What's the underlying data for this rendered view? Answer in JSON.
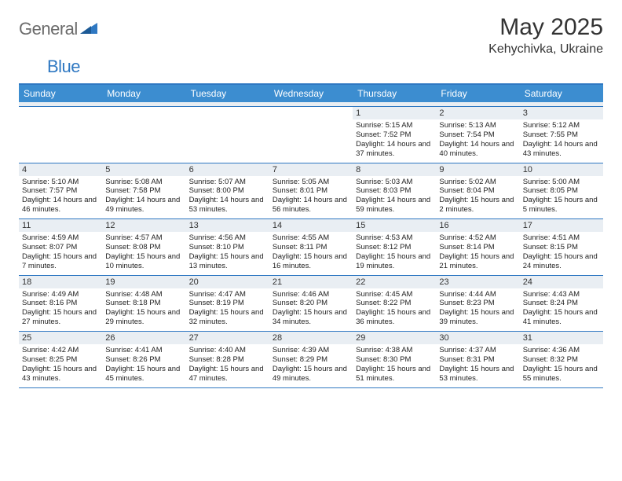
{
  "brand": {
    "part1": "General",
    "part2": "Blue"
  },
  "title": "May 2025",
  "location": "Kehychivka, Ukraine",
  "colors": {
    "header_bg": "#3c8dd0",
    "border": "#2f78c2",
    "daynum_bg": "#e9eef3",
    "text": "#333333",
    "brand_gray": "#6b6b6b",
    "brand_blue": "#2f78c2"
  },
  "dayNames": [
    "Sunday",
    "Monday",
    "Tuesday",
    "Wednesday",
    "Thursday",
    "Friday",
    "Saturday"
  ],
  "weeks": [
    [
      {
        "blank": true
      },
      {
        "blank": true
      },
      {
        "blank": true
      },
      {
        "blank": true
      },
      {
        "n": "1",
        "sunrise": "5:15 AM",
        "sunset": "7:52 PM",
        "daylight": "14 hours and 37 minutes."
      },
      {
        "n": "2",
        "sunrise": "5:13 AM",
        "sunset": "7:54 PM",
        "daylight": "14 hours and 40 minutes."
      },
      {
        "n": "3",
        "sunrise": "5:12 AM",
        "sunset": "7:55 PM",
        "daylight": "14 hours and 43 minutes."
      }
    ],
    [
      {
        "n": "4",
        "sunrise": "5:10 AM",
        "sunset": "7:57 PM",
        "daylight": "14 hours and 46 minutes."
      },
      {
        "n": "5",
        "sunrise": "5:08 AM",
        "sunset": "7:58 PM",
        "daylight": "14 hours and 49 minutes."
      },
      {
        "n": "6",
        "sunrise": "5:07 AM",
        "sunset": "8:00 PM",
        "daylight": "14 hours and 53 minutes."
      },
      {
        "n": "7",
        "sunrise": "5:05 AM",
        "sunset": "8:01 PM",
        "daylight": "14 hours and 56 minutes."
      },
      {
        "n": "8",
        "sunrise": "5:03 AM",
        "sunset": "8:03 PM",
        "daylight": "14 hours and 59 minutes."
      },
      {
        "n": "9",
        "sunrise": "5:02 AM",
        "sunset": "8:04 PM",
        "daylight": "15 hours and 2 minutes."
      },
      {
        "n": "10",
        "sunrise": "5:00 AM",
        "sunset": "8:05 PM",
        "daylight": "15 hours and 5 minutes."
      }
    ],
    [
      {
        "n": "11",
        "sunrise": "4:59 AM",
        "sunset": "8:07 PM",
        "daylight": "15 hours and 7 minutes."
      },
      {
        "n": "12",
        "sunrise": "4:57 AM",
        "sunset": "8:08 PM",
        "daylight": "15 hours and 10 minutes."
      },
      {
        "n": "13",
        "sunrise": "4:56 AM",
        "sunset": "8:10 PM",
        "daylight": "15 hours and 13 minutes."
      },
      {
        "n": "14",
        "sunrise": "4:55 AM",
        "sunset": "8:11 PM",
        "daylight": "15 hours and 16 minutes."
      },
      {
        "n": "15",
        "sunrise": "4:53 AM",
        "sunset": "8:12 PM",
        "daylight": "15 hours and 19 minutes."
      },
      {
        "n": "16",
        "sunrise": "4:52 AM",
        "sunset": "8:14 PM",
        "daylight": "15 hours and 21 minutes."
      },
      {
        "n": "17",
        "sunrise": "4:51 AM",
        "sunset": "8:15 PM",
        "daylight": "15 hours and 24 minutes."
      }
    ],
    [
      {
        "n": "18",
        "sunrise": "4:49 AM",
        "sunset": "8:16 PM",
        "daylight": "15 hours and 27 minutes."
      },
      {
        "n": "19",
        "sunrise": "4:48 AM",
        "sunset": "8:18 PM",
        "daylight": "15 hours and 29 minutes."
      },
      {
        "n": "20",
        "sunrise": "4:47 AM",
        "sunset": "8:19 PM",
        "daylight": "15 hours and 32 minutes."
      },
      {
        "n": "21",
        "sunrise": "4:46 AM",
        "sunset": "8:20 PM",
        "daylight": "15 hours and 34 minutes."
      },
      {
        "n": "22",
        "sunrise": "4:45 AM",
        "sunset": "8:22 PM",
        "daylight": "15 hours and 36 minutes."
      },
      {
        "n": "23",
        "sunrise": "4:44 AM",
        "sunset": "8:23 PM",
        "daylight": "15 hours and 39 minutes."
      },
      {
        "n": "24",
        "sunrise": "4:43 AM",
        "sunset": "8:24 PM",
        "daylight": "15 hours and 41 minutes."
      }
    ],
    [
      {
        "n": "25",
        "sunrise": "4:42 AM",
        "sunset": "8:25 PM",
        "daylight": "15 hours and 43 minutes."
      },
      {
        "n": "26",
        "sunrise": "4:41 AM",
        "sunset": "8:26 PM",
        "daylight": "15 hours and 45 minutes."
      },
      {
        "n": "27",
        "sunrise": "4:40 AM",
        "sunset": "8:28 PM",
        "daylight": "15 hours and 47 minutes."
      },
      {
        "n": "28",
        "sunrise": "4:39 AM",
        "sunset": "8:29 PM",
        "daylight": "15 hours and 49 minutes."
      },
      {
        "n": "29",
        "sunrise": "4:38 AM",
        "sunset": "8:30 PM",
        "daylight": "15 hours and 51 minutes."
      },
      {
        "n": "30",
        "sunrise": "4:37 AM",
        "sunset": "8:31 PM",
        "daylight": "15 hours and 53 minutes."
      },
      {
        "n": "31",
        "sunrise": "4:36 AM",
        "sunset": "8:32 PM",
        "daylight": "15 hours and 55 minutes."
      }
    ]
  ],
  "labels": {
    "sunrise": "Sunrise:",
    "sunset": "Sunset:",
    "daylight": "Daylight:"
  }
}
